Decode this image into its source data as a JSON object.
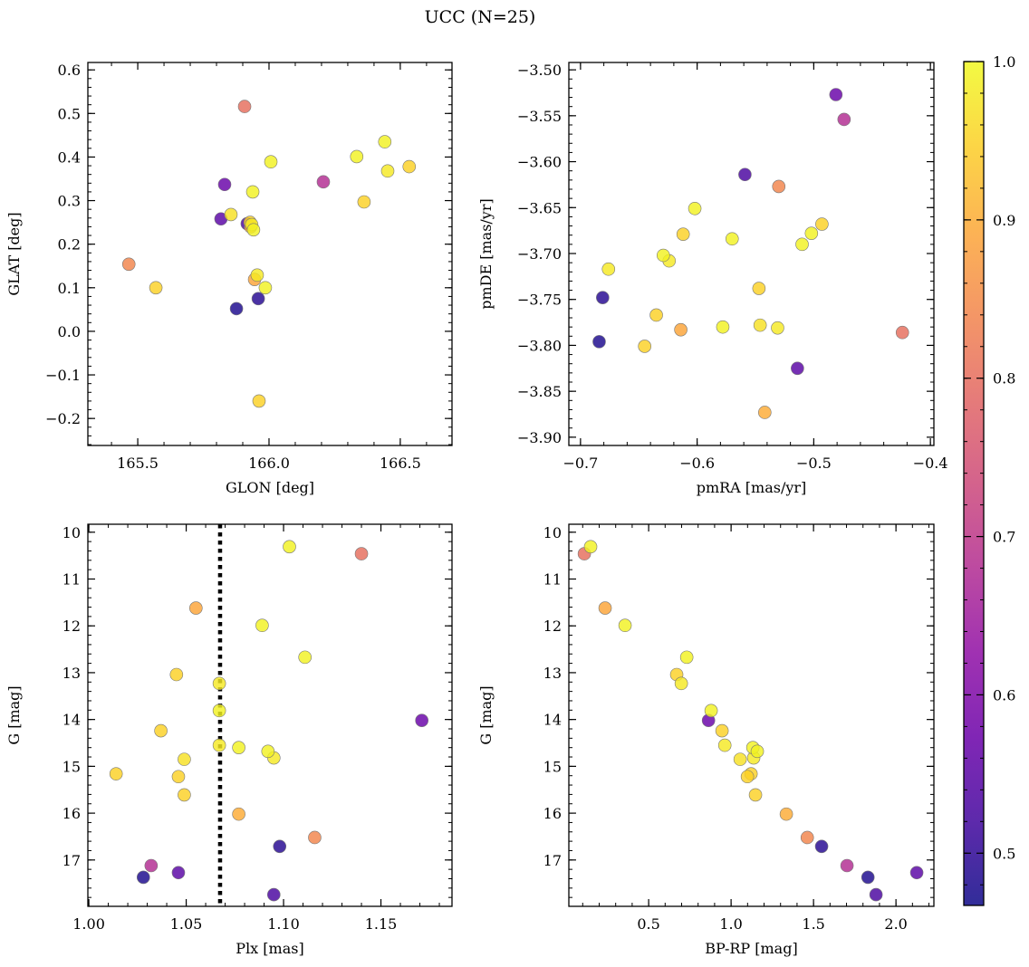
{
  "chart_data": {
    "type": "scatter",
    "title": "UCC (N=25)",
    "colormap": "plasma",
    "stars": [
      {
        "glon": 166.207,
        "glat": 0.343,
        "pmra": -0.474,
        "pmde": -3.554,
        "plx": 1.032,
        "g": 17.12,
        "bprp": 1.703,
        "prob": 0.68
      },
      {
        "glon": 165.959,
        "glat": 0.075,
        "pmra": -0.681,
        "pmde": -3.748,
        "plx": 1.098,
        "g": 16.71,
        "bprp": 1.549,
        "prob": 0.49
      },
      {
        "glon": 165.876,
        "glat": 0.052,
        "pmra": -0.684,
        "pmde": -3.796,
        "plx": 1.028,
        "g": 17.37,
        "bprp": 1.83,
        "prob": 0.48
      },
      {
        "glon": 165.831,
        "glat": 0.337,
        "pmra": -0.481,
        "pmde": -3.527,
        "plx": 1.171,
        "g": 14.02,
        "bprp": 0.863,
        "prob": 0.57
      },
      {
        "glon": 165.817,
        "glat": 0.258,
        "pmra": -0.514,
        "pmde": -3.825,
        "plx": 1.046,
        "g": 17.27,
        "bprp": 2.126,
        "prob": 0.55
      },
      {
        "glon": 165.917,
        "glat": 0.247,
        "pmra": -0.559,
        "pmde": -3.614,
        "plx": 1.095,
        "g": 17.74,
        "bprp": 1.879,
        "prob": 0.53
      },
      {
        "glon": 165.907,
        "glat": 0.516,
        "pmra": -0.424,
        "pmde": -3.786,
        "plx": 1.14,
        "g": 10.46,
        "bprp": 0.11,
        "prob": 0.8
      },
      {
        "glon": 165.466,
        "glat": 0.154,
        "pmra": -0.53,
        "pmde": -3.627,
        "plx": 1.116,
        "g": 16.52,
        "bprp": 1.462,
        "prob": 0.84
      },
      {
        "glon": 165.945,
        "glat": 0.119,
        "pmra": -0.614,
        "pmde": -3.783,
        "plx": 1.055,
        "g": 11.62,
        "bprp": 0.236,
        "prob": 0.89
      },
      {
        "glon": 165.93,
        "glat": 0.24,
        "pmra": -0.542,
        "pmde": -3.873,
        "plx": 1.077,
        "g": 16.02,
        "bprp": 1.335,
        "prob": 0.9
      },
      {
        "glon": 166.007,
        "glat": 0.389,
        "pmra": -0.602,
        "pmde": -3.651,
        "plx": 1.103,
        "g": 10.31,
        "bprp": 0.148,
        "prob": 0.99
      },
      {
        "glon": 165.938,
        "glat": 0.32,
        "pmra": -0.57,
        "pmde": -3.684,
        "plx": 1.089,
        "g": 11.99,
        "bprp": 0.357,
        "prob": 0.99
      },
      {
        "glon": 166.441,
        "glat": 0.435,
        "pmra": -0.502,
        "pmde": -3.678,
        "plx": 1.111,
        "g": 12.67,
        "bprp": 0.731,
        "prob": 0.99
      },
      {
        "glon": 165.569,
        "glat": 0.1,
        "pmra": -0.635,
        "pmde": -3.767,
        "plx": 1.045,
        "g": 13.04,
        "bprp": 0.67,
        "prob": 0.95
      },
      {
        "glon": 165.934,
        "glat": 0.245,
        "pmra": -0.624,
        "pmde": -3.708,
        "plx": 1.067,
        "g": 13.23,
        "bprp": 0.698,
        "prob": 0.98
      },
      {
        "glon": 165.941,
        "glat": 0.233,
        "pmra": -0.629,
        "pmde": -3.702,
        "plx": 1.067,
        "g": 13.81,
        "bprp": 0.879,
        "prob": 0.99
      },
      {
        "glon": 166.362,
        "glat": 0.297,
        "pmra": -0.612,
        "pmde": -3.679,
        "plx": 1.037,
        "g": 14.24,
        "bprp": 0.945,
        "prob": 0.95
      },
      {
        "glon": 165.955,
        "glat": 0.129,
        "pmra": -0.676,
        "pmde": -3.717,
        "plx": 1.067,
        "g": 14.55,
        "bprp": 0.962,
        "prob": 0.98
      },
      {
        "glon": 165.986,
        "glat": 0.1,
        "pmra": -0.578,
        "pmde": -3.78,
        "plx": 1.077,
        "g": 14.6,
        "bprp": 1.132,
        "prob": 0.99
      },
      {
        "glon": 166.334,
        "glat": 0.401,
        "pmra": -0.51,
        "pmde": -3.69,
        "plx": 1.092,
        "g": 14.68,
        "bprp": 1.159,
        "prob": 0.99
      },
      {
        "glon": 166.452,
        "glat": 0.368,
        "pmra": -0.531,
        "pmde": -3.781,
        "plx": 1.095,
        "g": 14.82,
        "bprp": 1.137,
        "prob": 0.98
      },
      {
        "glon": 165.855,
        "glat": 0.268,
        "pmra": -0.546,
        "pmde": -3.778,
        "plx": 1.049,
        "g": 14.85,
        "bprp": 1.055,
        "prob": 0.97
      },
      {
        "glon": 165.962,
        "glat": -0.16,
        "pmra": -0.645,
        "pmde": -3.801,
        "plx": 1.014,
        "g": 15.16,
        "bprp": 1.121,
        "prob": 0.95
      },
      {
        "glon": 166.534,
        "glat": 0.378,
        "pmra": -0.493,
        "pmde": -3.668,
        "plx": 1.046,
        "g": 15.22,
        "bprp": 1.099,
        "prob": 0.95
      },
      {
        "glon": 165.928,
        "glat": 0.25,
        "pmra": -0.547,
        "pmde": -3.738,
        "plx": 1.049,
        "g": 15.61,
        "bprp": 1.148,
        "prob": 0.95
      }
    ],
    "panels": [
      {
        "xkey": "glon",
        "ykey": "glat",
        "xlabel": "GLON [deg]",
        "ylabel": "GLAT [deg]",
        "xlim": [
          165.31,
          166.697
        ],
        "ylim": [
          -0.262,
          0.617
        ],
        "xticks": [
          165.5,
          166.0,
          166.5
        ],
        "xticklabels": [
          "165.5",
          "166.0",
          "166.5"
        ],
        "xminor": 0.1,
        "yticks": [
          -0.2,
          -0.1,
          0.0,
          0.1,
          0.2,
          0.3,
          0.4,
          0.5,
          0.6
        ],
        "yticklabels": [
          "−0.2",
          "−0.1",
          "0.0",
          "0.1",
          "0.2",
          "0.3",
          "0.4",
          "0.5",
          "0.6"
        ],
        "yminor": 0.02
      },
      {
        "xkey": "pmra",
        "ykey": "pmde",
        "xlabel": "pmRA [mas/yr]",
        "ylabel": "pmDE [mas/yr]",
        "xlim": [
          -0.71,
          -0.397
        ],
        "ylim": [
          -3.909,
          -3.492
        ],
        "xticks": [
          -0.7,
          -0.6,
          -0.5,
          -0.4
        ],
        "xticklabels": [
          "−0.7",
          "−0.6",
          "−0.5",
          "−0.4"
        ],
        "xminor": 0.02,
        "yticks": [
          -3.9,
          -3.85,
          -3.8,
          -3.75,
          -3.7,
          -3.65,
          -3.6,
          -3.55,
          -3.5
        ],
        "yticklabels": [
          "−3.90",
          "−3.85",
          "−3.80",
          "−3.75",
          "−3.70",
          "−3.65",
          "−3.60",
          "−3.55",
          "−3.50"
        ],
        "yminor": 0.01
      },
      {
        "xkey": "plx",
        "ykey": "g",
        "xlabel": "Plx [mas]",
        "ylabel": "G [mag]",
        "xlim": [
          0.9995,
          1.1865
        ],
        "ylim": [
          17.99,
          9.83
        ],
        "xticks": [
          1.0,
          1.05,
          1.1,
          1.15
        ],
        "xticklabels": [
          "1.00",
          "1.05",
          "1.10",
          "1.15"
        ],
        "xminor": 0.01,
        "yticks": [
          10,
          11,
          12,
          13,
          14,
          15,
          16,
          17
        ],
        "yticklabels": [
          "10",
          "11",
          "12",
          "13",
          "14",
          "15",
          "16",
          "17"
        ],
        "yminor": 0.2,
        "vline": {
          "x": 1.0674,
          "style": "dotted",
          "color": "#000000"
        }
      },
      {
        "xkey": "bprp",
        "ykey": "g",
        "xlabel": "BP-RP [mag]",
        "ylabel": "G [mag]",
        "xlim": [
          0.016,
          2.23
        ],
        "ylim": [
          17.99,
          9.83
        ],
        "xticks": [
          0.5,
          1.0,
          1.5,
          2.0
        ],
        "xticklabels": [
          "0.5",
          "1.0",
          "1.5",
          "2.0"
        ],
        "xminor": 0.1,
        "yticks": [
          10,
          11,
          12,
          13,
          14,
          15,
          16,
          17
        ],
        "yticklabels": [
          "10",
          "11",
          "12",
          "13",
          "14",
          "15",
          "16",
          "17"
        ],
        "yminor": 0.2
      }
    ],
    "colorbar": {
      "range": [
        0.467,
        1.0
      ],
      "ticks": [
        0.5,
        0.6,
        0.7,
        0.8,
        0.9,
        1.0
      ],
      "ticklabels": [
        "0.5",
        "0.6",
        "0.7",
        "0.8",
        "0.9",
        "1.0"
      ],
      "minor": 0.02
    }
  }
}
